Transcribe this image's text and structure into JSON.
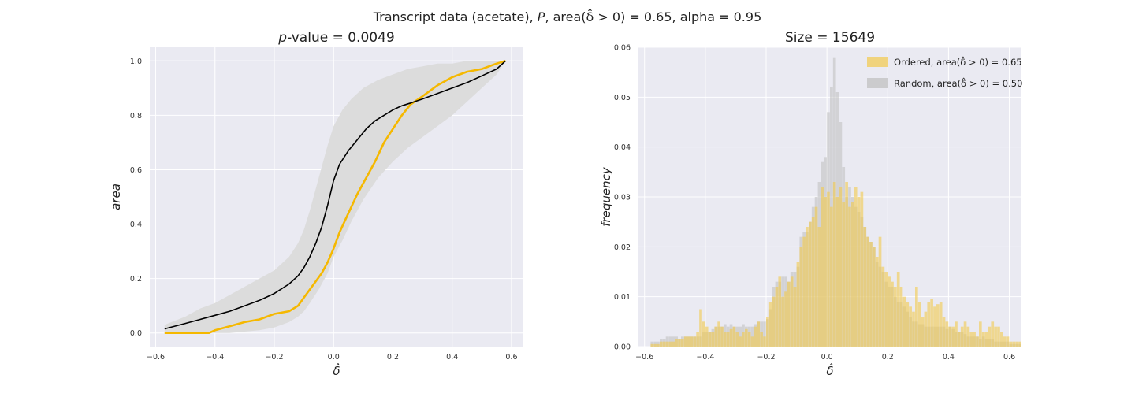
{
  "figure": {
    "suptitle": "Transcript data (acetate), P, area(δ̂ > 0) = 0.65, alpha = 0.95"
  },
  "colors": {
    "axes_bg": "#eaeaf2",
    "grid": "#ffffff",
    "ordered": "#f5b800",
    "random_line": "#000000",
    "band": "#dcdcdc",
    "hist_ordered": "#f2c94c",
    "hist_random": "#bdbdbd"
  },
  "chart_data": [
    {
      "type": "line",
      "title": "p-value = 0.0049",
      "title_italic_part": "p",
      "title_rest": "-value = 0.0049",
      "xlabel": "δ̂",
      "ylabel": "area",
      "xlim": [
        -0.62,
        0.64
      ],
      "ylim": [
        -0.05,
        1.05
      ],
      "xticks": [
        -0.6,
        -0.4,
        -0.2,
        0.0,
        0.2,
        0.4,
        0.6
      ],
      "xtick_labels": [
        "−0.6",
        "−0.4",
        "−0.2",
        "0.0",
        "0.2",
        "0.4",
        "0.6"
      ],
      "yticks": [
        0.0,
        0.2,
        0.4,
        0.6,
        0.8,
        1.0
      ],
      "ytick_labels": [
        "0.0",
        "0.2",
        "0.4",
        "0.6",
        "0.8",
        "1.0"
      ],
      "grid": true,
      "series": [
        {
          "role": "ordered",
          "x": [
            -0.57,
            -0.5,
            -0.42,
            -0.4,
            -0.35,
            -0.3,
            -0.25,
            -0.2,
            -0.15,
            -0.12,
            -0.1,
            -0.08,
            -0.06,
            -0.04,
            -0.02,
            0.0,
            0.02,
            0.05,
            0.08,
            0.11,
            0.14,
            0.17,
            0.2,
            0.23,
            0.26,
            0.3,
            0.35,
            0.4,
            0.45,
            0.5,
            0.55,
            0.58
          ],
          "y": [
            0.0,
            0.0,
            0.0,
            0.01,
            0.025,
            0.04,
            0.05,
            0.07,
            0.08,
            0.1,
            0.13,
            0.16,
            0.19,
            0.22,
            0.26,
            0.31,
            0.37,
            0.44,
            0.51,
            0.57,
            0.63,
            0.7,
            0.75,
            0.8,
            0.84,
            0.87,
            0.91,
            0.94,
            0.96,
            0.97,
            0.99,
            1.0
          ]
        },
        {
          "role": "random",
          "x": [
            -0.57,
            -0.5,
            -0.45,
            -0.4,
            -0.35,
            -0.3,
            -0.25,
            -0.2,
            -0.15,
            -0.12,
            -0.1,
            -0.08,
            -0.06,
            -0.04,
            -0.02,
            0.0,
            0.02,
            0.05,
            0.08,
            0.11,
            0.14,
            0.17,
            0.2,
            0.23,
            0.26,
            0.3,
            0.35,
            0.4,
            0.45,
            0.5,
            0.55,
            0.58
          ],
          "y": [
            0.015,
            0.035,
            0.05,
            0.065,
            0.08,
            0.1,
            0.12,
            0.145,
            0.18,
            0.21,
            0.24,
            0.28,
            0.33,
            0.39,
            0.47,
            0.56,
            0.62,
            0.67,
            0.71,
            0.75,
            0.78,
            0.8,
            0.82,
            0.835,
            0.845,
            0.86,
            0.88,
            0.9,
            0.92,
            0.945,
            0.97,
            1.0
          ]
        }
      ],
      "band": {
        "x": [
          -0.57,
          -0.5,
          -0.45,
          -0.4,
          -0.35,
          -0.3,
          -0.25,
          -0.2,
          -0.15,
          -0.12,
          -0.1,
          -0.08,
          -0.05,
          -0.02,
          0.0,
          0.03,
          0.06,
          0.1,
          0.15,
          0.2,
          0.25,
          0.3,
          0.35,
          0.4,
          0.45,
          0.5,
          0.55,
          0.58
        ],
        "lower": [
          0.0,
          0.0,
          0.0,
          0.0,
          0.0,
          0.005,
          0.01,
          0.02,
          0.04,
          0.06,
          0.08,
          0.11,
          0.16,
          0.22,
          0.28,
          0.34,
          0.41,
          0.49,
          0.57,
          0.63,
          0.68,
          0.72,
          0.76,
          0.8,
          0.85,
          0.9,
          0.95,
          1.0
        ],
        "upper": [
          0.03,
          0.06,
          0.09,
          0.11,
          0.14,
          0.17,
          0.2,
          0.23,
          0.28,
          0.33,
          0.38,
          0.45,
          0.57,
          0.69,
          0.76,
          0.82,
          0.86,
          0.9,
          0.93,
          0.95,
          0.97,
          0.98,
          0.99,
          0.99,
          1.0,
          1.0,
          1.0,
          1.0
        ]
      }
    },
    {
      "type": "histogram",
      "title": "Size = 15649",
      "xlabel": "δ̂",
      "ylabel": "frequency",
      "xlim": [
        -0.62,
        0.64
      ],
      "ylim": [
        0.0,
        0.06
      ],
      "xticks": [
        -0.6,
        -0.4,
        -0.2,
        0.0,
        0.2,
        0.4,
        0.6
      ],
      "xtick_labels": [
        "−0.6",
        "−0.4",
        "−0.2",
        "0.0",
        "0.2",
        "0.4",
        "0.6"
      ],
      "yticks": [
        0.0,
        0.01,
        0.02,
        0.03,
        0.04,
        0.05,
        0.06
      ],
      "ytick_labels": [
        "0.00",
        "0.01",
        "0.02",
        "0.03",
        "0.04",
        "0.05",
        "0.06"
      ],
      "grid": true,
      "legend_position": "top-right",
      "bin_start": -0.58,
      "bin_width": 0.01,
      "series": [
        {
          "role": "ordered",
          "name": "Ordered, area(δ̂ > 0) = 0.65",
          "values": [
            0.0005,
            0.0005,
            0.0005,
            0.001,
            0.001,
            0.001,
            0.001,
            0.001,
            0.0015,
            0.0015,
            0.0015,
            0.002,
            0.002,
            0.002,
            0.002,
            0.003,
            0.0075,
            0.005,
            0.004,
            0.003,
            0.003,
            0.004,
            0.005,
            0.004,
            0.003,
            0.003,
            0.0035,
            0.004,
            0.003,
            0.002,
            0.003,
            0.0035,
            0.003,
            0.002,
            0.004,
            0.005,
            0.003,
            0.002,
            0.006,
            0.009,
            0.01,
            0.012,
            0.014,
            0.01,
            0.011,
            0.013,
            0.014,
            0.012,
            0.017,
            0.02,
            0.022,
            0.024,
            0.025,
            0.026,
            0.028,
            0.024,
            0.032,
            0.03,
            0.031,
            0.028,
            0.033,
            0.03,
            0.032,
            0.029,
            0.033,
            0.028,
            0.029,
            0.032,
            0.03,
            0.031,
            0.024,
            0.022,
            0.021,
            0.02,
            0.018,
            0.022,
            0.016,
            0.015,
            0.014,
            0.013,
            0.012,
            0.015,
            0.012,
            0.01,
            0.009,
            0.008,
            0.007,
            0.012,
            0.009,
            0.006,
            0.007,
            0.009,
            0.0095,
            0.008,
            0.0085,
            0.009,
            0.006,
            0.005,
            0.004,
            0.004,
            0.005,
            0.003,
            0.004,
            0.005,
            0.004,
            0.003,
            0.003,
            0.002,
            0.005,
            0.003,
            0.003,
            0.004,
            0.005,
            0.004,
            0.004,
            0.003,
            0.002,
            0.002,
            0.001,
            0.001,
            0.001,
            0.001
          ]
        },
        {
          "role": "random",
          "name": "Random, area(δ̂ > 0) = 0.50",
          "values": [
            0.001,
            0.001,
            0.001,
            0.0015,
            0.0015,
            0.002,
            0.002,
            0.002,
            0.002,
            0.0015,
            0.002,
            0.002,
            0.002,
            0.002,
            0.002,
            0.002,
            0.002,
            0.003,
            0.003,
            0.003,
            0.0035,
            0.004,
            0.004,
            0.004,
            0.0045,
            0.004,
            0.0045,
            0.004,
            0.004,
            0.004,
            0.0045,
            0.004,
            0.004,
            0.004,
            0.0045,
            0.005,
            0.005,
            0.005,
            0.0055,
            0.0075,
            0.012,
            0.013,
            0.013,
            0.014,
            0.014,
            0.013,
            0.015,
            0.015,
            0.016,
            0.022,
            0.023,
            0.023,
            0.025,
            0.028,
            0.03,
            0.033,
            0.037,
            0.038,
            0.047,
            0.052,
            0.058,
            0.051,
            0.045,
            0.036,
            0.03,
            0.032,
            0.03,
            0.028,
            0.027,
            0.026,
            0.024,
            0.022,
            0.021,
            0.02,
            0.017,
            0.016,
            0.015,
            0.013,
            0.012,
            0.012,
            0.01,
            0.009,
            0.009,
            0.008,
            0.007,
            0.006,
            0.005,
            0.005,
            0.0045,
            0.0045,
            0.004,
            0.004,
            0.004,
            0.004,
            0.004,
            0.004,
            0.004,
            0.0035,
            0.004,
            0.0035,
            0.003,
            0.003,
            0.003,
            0.0025,
            0.002,
            0.002,
            0.002,
            0.002,
            0.0015,
            0.002,
            0.0015,
            0.0015,
            0.0015,
            0.001,
            0.001,
            0.001,
            0.001,
            0.001,
            0.0005,
            0.0005,
            0.0005,
            0.0005
          ]
        }
      ]
    }
  ]
}
